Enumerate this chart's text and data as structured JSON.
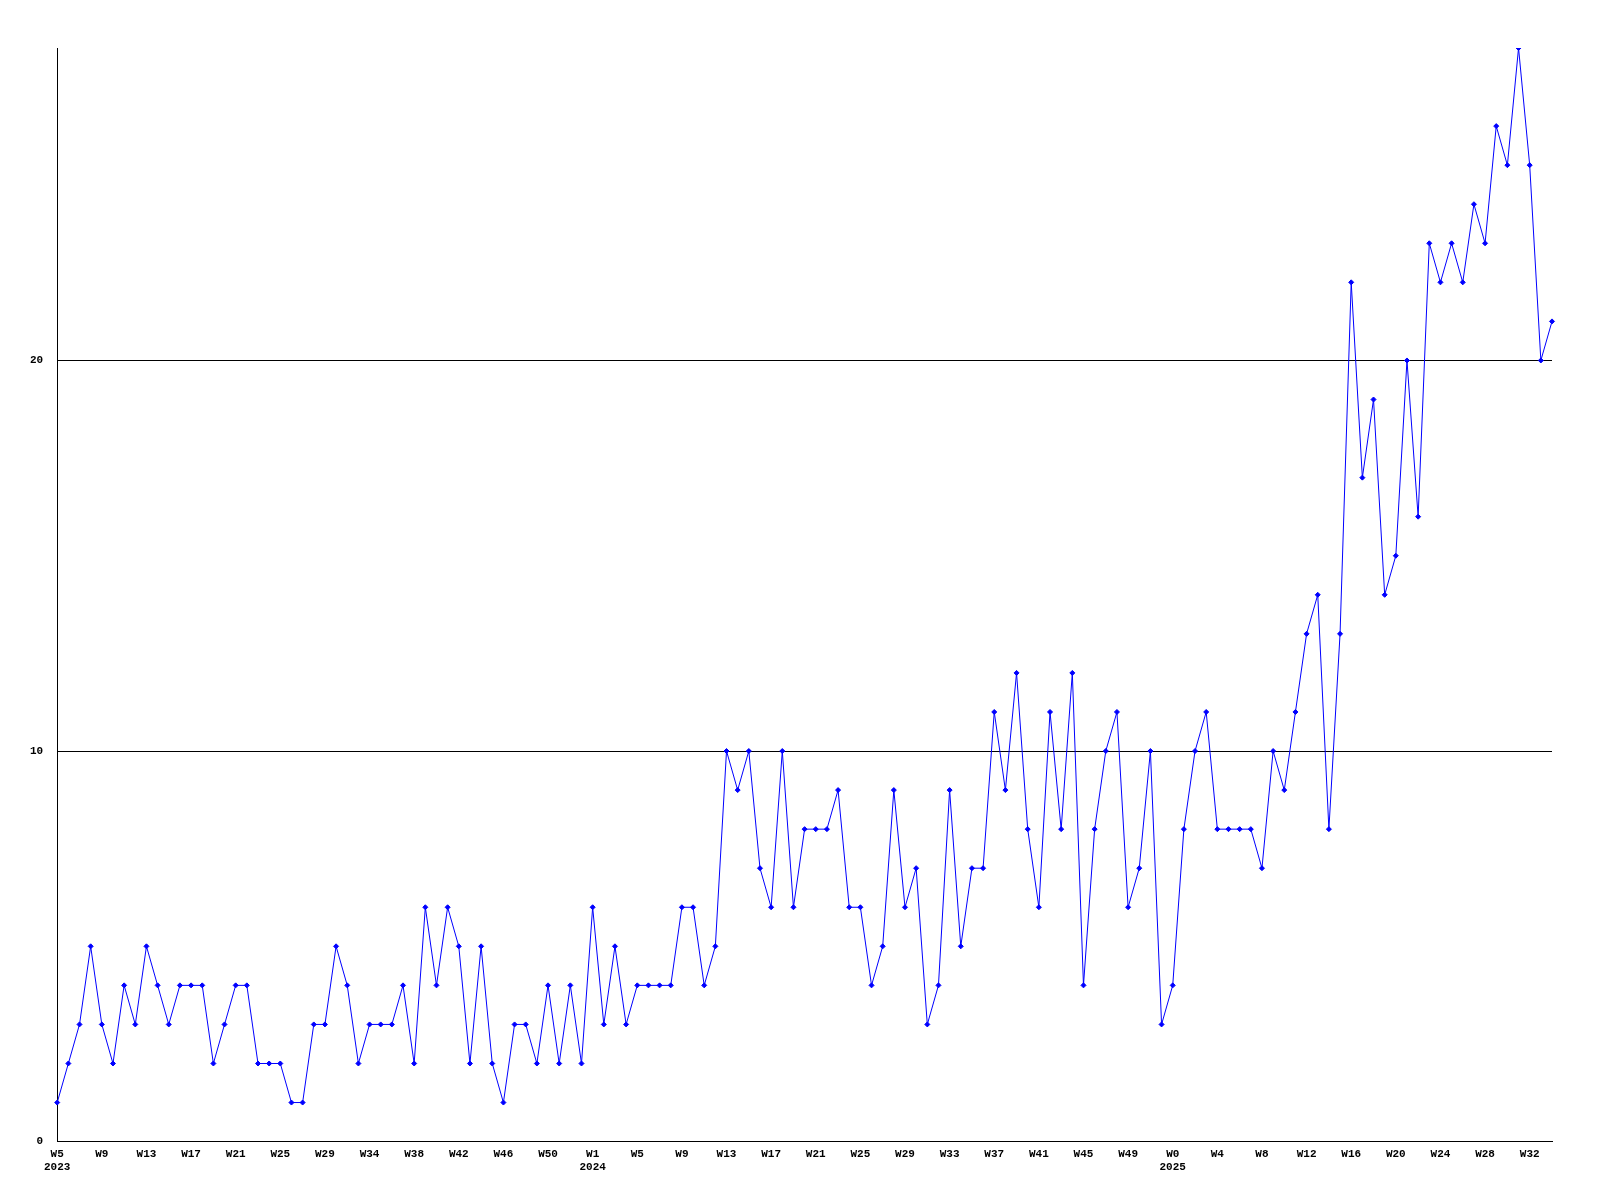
{
  "chart_data": {
    "type": "line",
    "categories": [
      "W5\n2023",
      null,
      null,
      null,
      "W9",
      null,
      null,
      null,
      "W13",
      null,
      null,
      null,
      "W17",
      null,
      null,
      null,
      "W21",
      null,
      null,
      null,
      "W25",
      null,
      null,
      null,
      "W29",
      null,
      null,
      null,
      "W34",
      null,
      null,
      null,
      "W38",
      null,
      null,
      null,
      "W42",
      null,
      null,
      null,
      "W46",
      null,
      null,
      null,
      "W50",
      null,
      null,
      null,
      "W1\n2024",
      null,
      null,
      null,
      "W5",
      null,
      null,
      null,
      "W9",
      null,
      null,
      null,
      "W13",
      null,
      null,
      null,
      "W17",
      null,
      null,
      null,
      "W21",
      null,
      null,
      null,
      "W25",
      null,
      null,
      null,
      "W29",
      null,
      null,
      null,
      "W33",
      null,
      null,
      null,
      "W37",
      null,
      null,
      null,
      "W41",
      null,
      null,
      null,
      "W45",
      null,
      null,
      null,
      "W49",
      null,
      null,
      null,
      "W0\n2025",
      null,
      null,
      null,
      "W4",
      null,
      null,
      null,
      "W8",
      null,
      null,
      null,
      "W12",
      null,
      null,
      null,
      "W16",
      null,
      null,
      null,
      "W20",
      null,
      null,
      null,
      "W24",
      null,
      null,
      null,
      "W28",
      null,
      null,
      null,
      "W32",
      null,
      null
    ],
    "series": [
      {
        "color": "#0000ff",
        "values": [
          1,
          2,
          3,
          5,
          3,
          2,
          4,
          3,
          5,
          4,
          3,
          4,
          4,
          4,
          2,
          3,
          4,
          4,
          2,
          2,
          2,
          1,
          1,
          3,
          3,
          5,
          4,
          2,
          3,
          3,
          3,
          4,
          2,
          6,
          4,
          6,
          5,
          2,
          5,
          2,
          1,
          3,
          3,
          2,
          4,
          2,
          4,
          2,
          6,
          3,
          5,
          3,
          4,
          4,
          4,
          4,
          6,
          6,
          4,
          5,
          10,
          9,
          10,
          7,
          6,
          10,
          6,
          8,
          8,
          8,
          9,
          6,
          6,
          4,
          5,
          9,
          6,
          7,
          3,
          4,
          9,
          5,
          7,
          7,
          11,
          9,
          12,
          8,
          6,
          11,
          8,
          12,
          4,
          8,
          10,
          11,
          6,
          7,
          10,
          3,
          4,
          8,
          10,
          11,
          8,
          8,
          8,
          8,
          7,
          10,
          9,
          11,
          13,
          14,
          8,
          13,
          22,
          17,
          19,
          14,
          15,
          20,
          16,
          23,
          22,
          23,
          22,
          24,
          23,
          26,
          25,
          28,
          25,
          20,
          21
        ]
      }
    ],
    "ylim": [
      0,
      28
    ],
    "yticks": [
      0,
      10,
      20
    ],
    "grid": "y",
    "legend": false,
    "marker": "diamond",
    "line_style": "solid"
  }
}
